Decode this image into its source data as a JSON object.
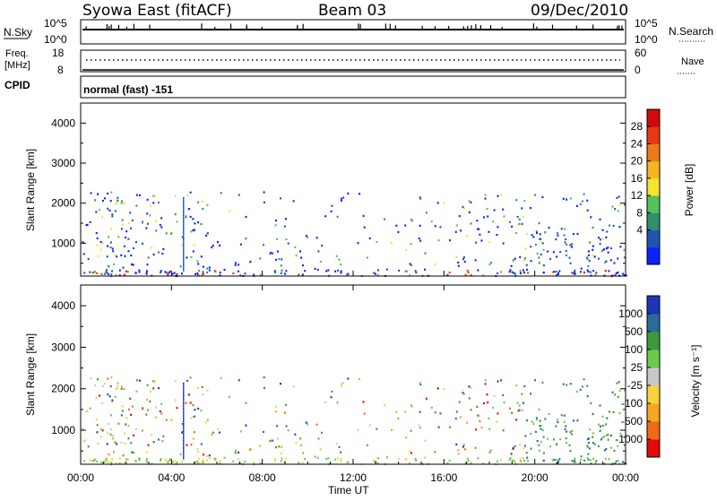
{
  "header": {
    "station": "Syowa East (fitACF)",
    "beam": "Beam 03",
    "date": "09/Dec/2010"
  },
  "top_panel": {
    "left_label": "N.Sky",
    "right_label": "N.Search",
    "left_ticks": [
      "10^5",
      "10^0"
    ],
    "right_ticks": [
      "10^5",
      "10^0"
    ]
  },
  "freq_panel": {
    "left_label_1": "Freq.",
    "left_label_2": "[MHz]",
    "right_label": "Nave",
    "left_ticks": [
      "18",
      "8"
    ],
    "right_ticks": [
      "60",
      "0"
    ]
  },
  "cpid_panel": {
    "label": "CPID",
    "mode_text": "normal (fast) -151"
  },
  "power_panel": {
    "ylabel": "Slant Range [km]",
    "yticks": [
      "4000",
      "3000",
      "2000",
      "1000"
    ],
    "colorbar_label": "Power [dB]",
    "colorbar_ticks": [
      "28",
      "24",
      "20",
      "16",
      "12",
      "8",
      "4"
    ]
  },
  "velocity_panel": {
    "ylabel": "Slant Range [km]",
    "yticks": [
      "4000",
      "3000",
      "2000",
      "1000"
    ],
    "colorbar_label": "Velocity [m s⁻¹]",
    "colorbar_ticks": [
      "1000",
      "500",
      "100",
      "25",
      "-25",
      "-100",
      "-500",
      "-1000"
    ]
  },
  "xaxis": {
    "label": "Time UT",
    "ticks": [
      "00:00",
      "04:00",
      "08:00",
      "12:00",
      "16:00",
      "20:00",
      "00:00"
    ]
  },
  "colors": {
    "power_scale": [
      "#0b22ff",
      "#1c56b0",
      "#2f8f6a",
      "#55c25a",
      "#f2e430",
      "#f5b623",
      "#ef7a19",
      "#e73a12",
      "#d40a0a"
    ],
    "velocity_scale": [
      "#e00a0a",
      "#ef6a17",
      "#f5a623",
      "#f3d43a",
      "#c8c8c8",
      "#6cc94a",
      "#3a9a3e",
      "#2c6a9a",
      "#1f34b8"
    ]
  },
  "chart_data": {
    "type": "heatmap",
    "x_range_hours": [
      0,
      24
    ],
    "y_range_km": [
      180,
      4500
    ],
    "scatter_band_km": [
      200,
      2300
    ],
    "power_range_db": [
      0,
      30
    ],
    "velocity_range_ms": [
      -1000,
      1000
    ],
    "grid": false
  }
}
